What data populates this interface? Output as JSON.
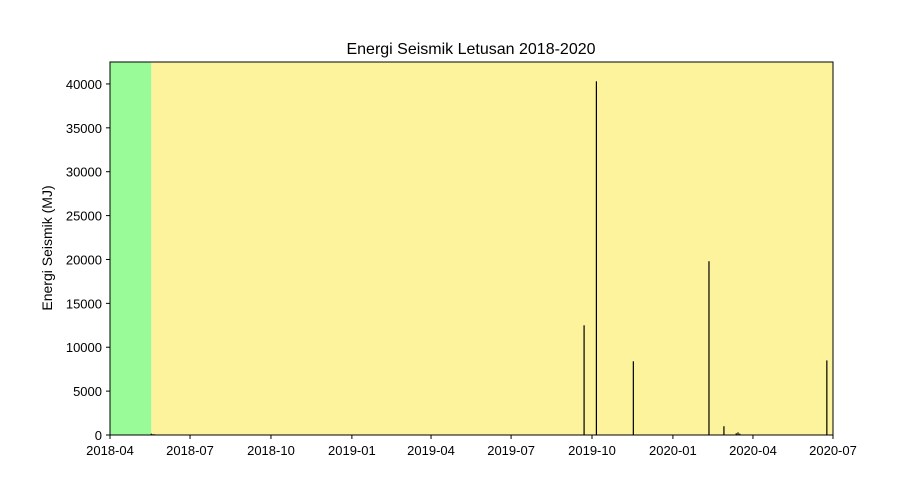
{
  "chart_data": {
    "type": "bar",
    "title": "Energi Seismik Letusan 2018-2020",
    "xlabel": "",
    "ylabel": "Energi Seismik (MJ)",
    "xlim": [
      "2018-04-01",
      "2020-07-01"
    ],
    "ylim": [
      0,
      42500
    ],
    "xticks": [
      "2018-04",
      "2018-07",
      "2018-10",
      "2019-01",
      "2019-04",
      "2019-07",
      "2019-10",
      "2020-01",
      "2020-04",
      "2020-07"
    ],
    "yticks": [
      0,
      5000,
      10000,
      15000,
      20000,
      25000,
      30000,
      35000,
      40000
    ],
    "grid": false,
    "background_spans": [
      {
        "start": "2018-04-01",
        "end": "2018-05-18",
        "color": "#98fb98"
      },
      {
        "start": "2018-05-18",
        "end": "2020-07-01",
        "color": "#fdf39c"
      }
    ],
    "bar_color": "#000000",
    "dates": [
      "2018-05-18",
      "2018-05-20",
      "2018-05-22",
      "2019-09-22",
      "2019-10-06",
      "2019-11-17",
      "2020-02-11",
      "2020-02-28",
      "2020-03-13",
      "2020-03-15",
      "2020-03-17",
      "2020-06-24"
    ],
    "values": [
      150,
      100,
      80,
      12500,
      40300,
      8400,
      19800,
      1000,
      200,
      300,
      150,
      8500
    ]
  }
}
